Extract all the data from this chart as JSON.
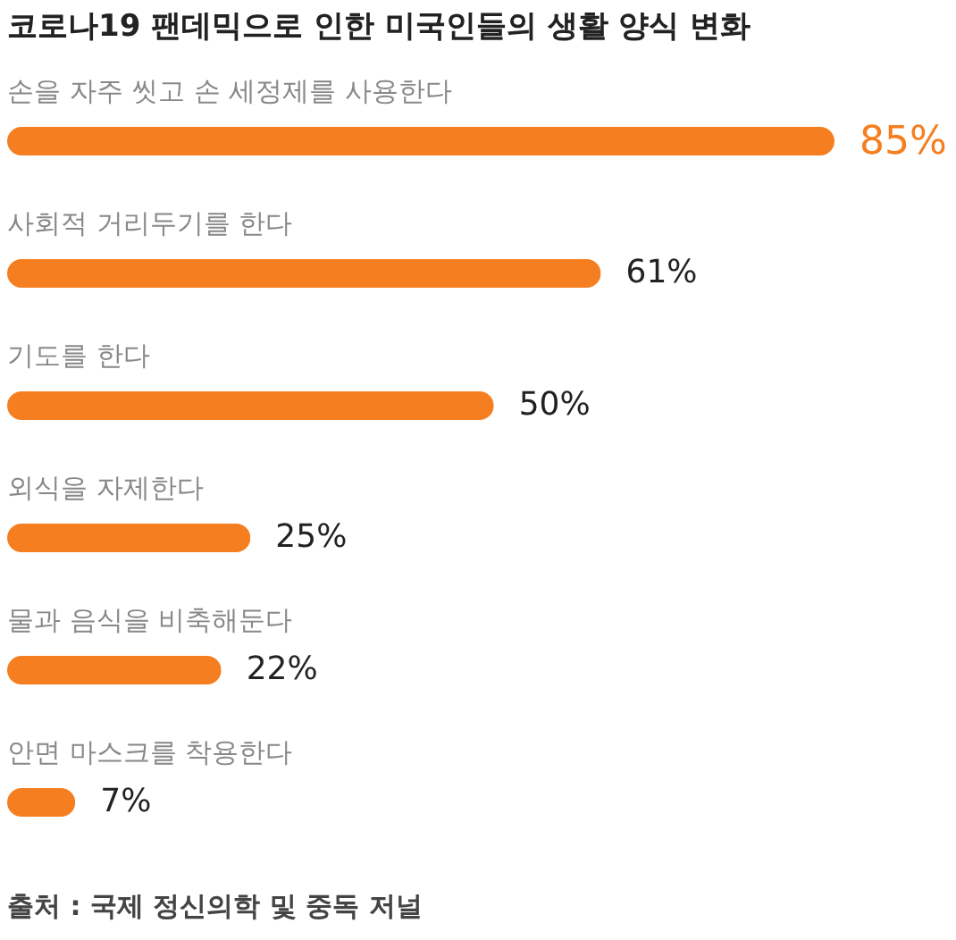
{
  "chart_data": {
    "type": "bar",
    "orientation": "horizontal",
    "title": "코로나19 팬데믹으로 인한 미국인들의 생활 양식 변화",
    "categories": [
      "손을 자주 씻고 손 세정제를 사용한다",
      "사회적 거리두기를 한다",
      "기도를 한다",
      "외식을 자제한다",
      "물과 음식을 비축해둔다",
      "안면 마스크를 착용한다"
    ],
    "values": [
      85,
      61,
      50,
      25,
      22,
      7
    ],
    "value_labels": [
      "85%",
      "61%",
      "50%",
      "25%",
      "22%",
      "7%"
    ],
    "color": "#f57f20",
    "annotations": [
      "출처 : 국제 정신의학 및 중독 저널"
    ]
  }
}
